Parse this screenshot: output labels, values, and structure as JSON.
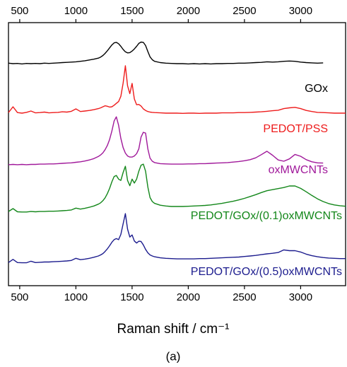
{
  "chart_data": {
    "type": "line",
    "xlabel": "Raman shift / cm⁻¹",
    "caption": "(a)",
    "xlim": [
      400,
      3400
    ],
    "xticks": [
      500,
      1000,
      1500,
      2000,
      2500,
      3000
    ],
    "ylim": [
      0,
      100
    ],
    "x": [
      400,
      440,
      480,
      520,
      560,
      600,
      640,
      680,
      720,
      760,
      800,
      840,
      880,
      920,
      960,
      1000,
      1040,
      1080,
      1120,
      1160,
      1200,
      1220,
      1240,
      1260,
      1280,
      1300,
      1320,
      1340,
      1360,
      1380,
      1400,
      1420,
      1440,
      1460,
      1480,
      1500,
      1520,
      1540,
      1560,
      1580,
      1600,
      1620,
      1640,
      1660,
      1680,
      1700,
      1750,
      1800,
      1850,
      1900,
      1950,
      2000,
      2050,
      2100,
      2150,
      2200,
      2250,
      2300,
      2350,
      2400,
      2450,
      2500,
      2550,
      2600,
      2650,
      2700,
      2750,
      2800,
      2850,
      2900,
      2950,
      3000,
      3050,
      3100,
      3150,
      3200,
      3250,
      3300,
      3350,
      3400
    ],
    "series": [
      {
        "name": "GOx",
        "color": "#000000",
        "values": [
          84.6,
          84.4,
          84.5,
          84.3,
          84.5,
          84.4,
          84.5,
          84.4,
          84.6,
          84.5,
          84.6,
          84.7,
          84.8,
          84.9,
          85.0,
          85.1,
          85.3,
          85.5,
          85.8,
          86.1,
          86.5,
          86.9,
          87.5,
          88.3,
          89.3,
          90.4,
          91.5,
          92.3,
          92.5,
          92.0,
          91.0,
          89.8,
          88.9,
          88.5,
          88.6,
          89.2,
          90.0,
          91.0,
          92.1,
          92.6,
          92.5,
          91.3,
          89.0,
          87.0,
          85.9,
          85.3,
          84.8,
          84.6,
          84.5,
          84.4,
          84.4,
          84.3,
          84.4,
          84.3,
          84.4,
          84.3,
          84.4,
          84.4,
          84.5,
          84.5,
          84.6,
          84.6,
          84.7,
          84.8,
          84.9,
          85.1,
          85.0,
          85.1,
          85.3,
          85.4,
          85.3,
          85.0,
          84.8,
          84.7,
          84.6,
          84.7,
          null,
          null,
          null,
          null
        ]
      },
      {
        "name": "PEDOT/PSS",
        "color": "#ee1c1c",
        "values": [
          65.8,
          68.0,
          65.8,
          65.6,
          65.9,
          66.4,
          65.7,
          65.8,
          66.0,
          65.7,
          65.8,
          65.9,
          66.1,
          66.0,
          66.3,
          67.2,
          66.2,
          66.4,
          66.6,
          66.9,
          67.3,
          67.6,
          68.0,
          68.4,
          68.2,
          67.9,
          68.0,
          68.6,
          69.3,
          70.0,
          72.0,
          77.0,
          83.6,
          76.0,
          73.0,
          76.9,
          71.0,
          68.8,
          68.9,
          68.3,
          67.2,
          66.6,
          66.2,
          66.0,
          65.9,
          65.8,
          65.7,
          65.6,
          65.6,
          65.6,
          65.5,
          65.6,
          65.6,
          65.5,
          65.6,
          65.6,
          65.6,
          65.7,
          65.7,
          65.7,
          65.8,
          65.8,
          65.9,
          66.0,
          66.1,
          66.3,
          66.5,
          66.7,
          67.3,
          67.6,
          67.8,
          67.3,
          66.6,
          66.2,
          65.9,
          65.8,
          65.7,
          65.6,
          65.6,
          65.6
        ]
      },
      {
        "name": "oxMWCNTs",
        "color": "#a0189a",
        "values": [
          46.0,
          46.1,
          46.0,
          46.1,
          46.0,
          46.1,
          46.1,
          46.2,
          46.2,
          46.3,
          46.3,
          46.4,
          46.5,
          46.6,
          46.7,
          46.9,
          47.1,
          47.4,
          47.8,
          48.3,
          49.1,
          49.7,
          50.5,
          51.7,
          53.3,
          55.6,
          58.8,
          62.6,
          64.2,
          61.0,
          56.0,
          52.5,
          50.4,
          49.3,
          48.9,
          48.9,
          49.3,
          50.2,
          52.0,
          56.5,
          58.3,
          58.0,
          52.0,
          48.5,
          47.3,
          46.8,
          46.4,
          46.3,
          46.2,
          46.2,
          46.2,
          46.3,
          46.3,
          46.4,
          46.4,
          46.5,
          46.6,
          46.7,
          46.8,
          47.0,
          47.2,
          47.5,
          47.9,
          48.6,
          49.8,
          51.1,
          49.6,
          47.8,
          47.3,
          48.2,
          49.9,
          49.2,
          47.9,
          47.1,
          46.7,
          46.6,
          null,
          null,
          null,
          null
        ]
      },
      {
        "name": "PEDOT/GOx/(0.1)oxMWCNTs",
        "color": "#13871a",
        "values": [
          28.2,
          29.3,
          28.1,
          28.0,
          28.0,
          28.2,
          28.1,
          28.2,
          28.2,
          28.3,
          28.3,
          28.4,
          28.5,
          28.6,
          28.8,
          29.5,
          29.1,
          29.4,
          29.8,
          30.3,
          31.0,
          31.5,
          32.3,
          33.4,
          35.0,
          37.0,
          39.5,
          41.5,
          41.9,
          40.5,
          40.0,
          43.0,
          45.4,
          40.0,
          38.0,
          40.5,
          39.0,
          40.5,
          43.5,
          45.8,
          46.2,
          43.5,
          37.5,
          33.5,
          32.0,
          31.3,
          30.6,
          30.3,
          30.1,
          30.1,
          30.1,
          30.2,
          30.3,
          30.4,
          30.5,
          30.7,
          31.0,
          31.3,
          31.7,
          32.1,
          32.6,
          33.2,
          33.9,
          34.6,
          35.4,
          36.1,
          36.5,
          36.9,
          37.3,
          37.9,
          37.9,
          37.0,
          35.7,
          34.3,
          33.0,
          32.0,
          31.2,
          30.7,
          30.4,
          30.2
        ]
      },
      {
        "name": "PEDOT/GOx/(0.5)oxMWCNTs",
        "color": "#1c1c8e",
        "values": [
          8.8,
          10.0,
          8.8,
          8.7,
          8.7,
          9.3,
          8.8,
          8.9,
          9.0,
          9.0,
          9.1,
          9.2,
          9.3,
          9.4,
          9.6,
          10.4,
          9.9,
          10.1,
          10.4,
          10.8,
          11.3,
          11.7,
          12.2,
          13.0,
          14.0,
          15.2,
          16.5,
          17.5,
          17.9,
          17.5,
          19.5,
          23.5,
          27.4,
          21.5,
          18.5,
          19.3,
          17.0,
          16.2,
          16.9,
          16.8,
          15.5,
          13.8,
          12.5,
          11.7,
          11.3,
          11.0,
          10.6,
          10.4,
          10.3,
          10.2,
          10.2,
          10.2,
          10.2,
          10.3,
          10.3,
          10.4,
          10.5,
          10.6,
          10.7,
          10.8,
          10.9,
          11.1,
          11.3,
          11.5,
          11.8,
          12.1,
          12.3,
          12.6,
          13.6,
          13.3,
          13.3,
          12.8,
          12.0,
          11.4,
          11.0,
          10.7,
          10.5,
          10.4,
          10.3,
          10.3
        ]
      }
    ]
  }
}
